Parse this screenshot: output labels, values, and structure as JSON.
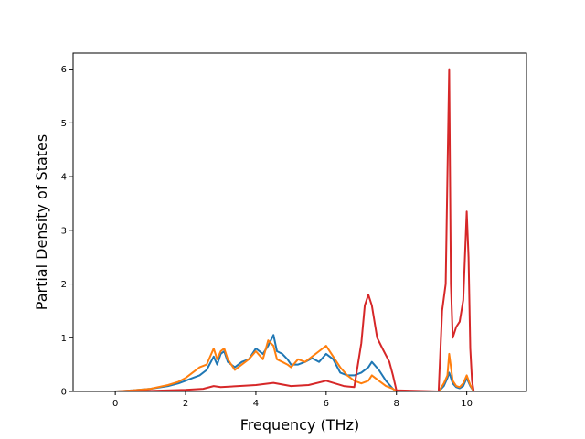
{
  "chart_data": {
    "type": "line",
    "title": "",
    "xlabel": "Frequency (THz)",
    "ylabel": "Partial Density of States",
    "xlim": [
      -1.2,
      11.7
    ],
    "ylim": [
      0,
      6.3
    ],
    "xticks": [
      0,
      2,
      4,
      6,
      8,
      10
    ],
    "yticks": [
      0,
      1,
      2,
      3,
      4,
      5,
      6
    ],
    "grid": false,
    "legend": "none",
    "series": [
      {
        "color": "#1f77b4",
        "x": [
          -1.0,
          0.0,
          0.5,
          1.0,
          1.5,
          1.8,
          2.0,
          2.2,
          2.4,
          2.6,
          2.8,
          2.9,
          3.0,
          3.1,
          3.2,
          3.4,
          3.6,
          3.8,
          4.0,
          4.2,
          4.35,
          4.5,
          4.6,
          4.75,
          4.9,
          5.0,
          5.2,
          5.4,
          5.6,
          5.8,
          6.0,
          6.2,
          6.4,
          6.6,
          6.8,
          7.0,
          7.2,
          7.3,
          7.5,
          7.7,
          7.9,
          8.0,
          9.2,
          9.35,
          9.45,
          9.5,
          9.6,
          9.7,
          9.8,
          9.9,
          10.0,
          10.1,
          10.2,
          11.2
        ],
        "y": [
          0.0,
          0.0,
          0.02,
          0.05,
          0.1,
          0.15,
          0.2,
          0.25,
          0.3,
          0.4,
          0.65,
          0.5,
          0.7,
          0.75,
          0.55,
          0.45,
          0.55,
          0.6,
          0.8,
          0.7,
          0.85,
          1.05,
          0.75,
          0.7,
          0.6,
          0.5,
          0.5,
          0.55,
          0.62,
          0.55,
          0.7,
          0.6,
          0.35,
          0.3,
          0.3,
          0.35,
          0.45,
          0.55,
          0.4,
          0.2,
          0.05,
          0.0,
          0.0,
          0.1,
          0.25,
          0.35,
          0.15,
          0.08,
          0.06,
          0.1,
          0.25,
          0.1,
          0.0,
          0.0
        ]
      },
      {
        "color": "#ff7f0e",
        "x": [
          -1.0,
          0.0,
          0.5,
          1.0,
          1.5,
          1.8,
          2.0,
          2.2,
          2.4,
          2.6,
          2.8,
          2.9,
          3.0,
          3.1,
          3.2,
          3.4,
          3.6,
          3.8,
          4.0,
          4.2,
          4.35,
          4.5,
          4.6,
          4.75,
          4.9,
          5.0,
          5.2,
          5.4,
          5.6,
          5.8,
          6.0,
          6.2,
          6.4,
          6.6,
          6.8,
          7.0,
          7.2,
          7.3,
          7.5,
          7.7,
          7.9,
          8.0,
          9.2,
          9.35,
          9.45,
          9.5,
          9.6,
          9.7,
          9.8,
          9.9,
          10.0,
          10.1,
          10.2,
          11.2
        ],
        "y": [
          0.0,
          0.0,
          0.02,
          0.05,
          0.12,
          0.18,
          0.25,
          0.35,
          0.45,
          0.5,
          0.8,
          0.6,
          0.75,
          0.8,
          0.6,
          0.4,
          0.5,
          0.6,
          0.75,
          0.6,
          0.95,
          0.85,
          0.6,
          0.55,
          0.5,
          0.45,
          0.6,
          0.55,
          0.65,
          0.75,
          0.85,
          0.65,
          0.45,
          0.3,
          0.2,
          0.15,
          0.2,
          0.3,
          0.2,
          0.1,
          0.05,
          0.0,
          0.0,
          0.15,
          0.3,
          0.7,
          0.2,
          0.1,
          0.08,
          0.15,
          0.3,
          0.12,
          0.0,
          0.0
        ]
      },
      {
        "color": "#d62728",
        "x": [
          -1.0,
          0.0,
          1.0,
          2.0,
          2.5,
          2.8,
          3.0,
          3.5,
          4.0,
          4.5,
          5.0,
          5.5,
          6.0,
          6.5,
          6.8,
          7.0,
          7.1,
          7.2,
          7.3,
          7.45,
          7.6,
          7.8,
          7.9,
          8.0,
          9.2,
          9.3,
          9.4,
          9.45,
          9.5,
          9.55,
          9.6,
          9.7,
          9.8,
          9.9,
          10.0,
          10.05,
          10.1,
          10.15,
          10.2,
          11.2
        ],
        "y": [
          0.0,
          0.0,
          0.01,
          0.03,
          0.05,
          0.1,
          0.08,
          0.1,
          0.12,
          0.16,
          0.1,
          0.12,
          0.2,
          0.1,
          0.08,
          0.9,
          1.6,
          1.8,
          1.6,
          1.0,
          0.8,
          0.55,
          0.3,
          0.02,
          0.0,
          1.5,
          2.0,
          4.0,
          6.0,
          2.0,
          1.0,
          1.2,
          1.3,
          1.7,
          3.35,
          2.5,
          0.8,
          0.2,
          0.0,
          0.0
        ]
      }
    ]
  }
}
